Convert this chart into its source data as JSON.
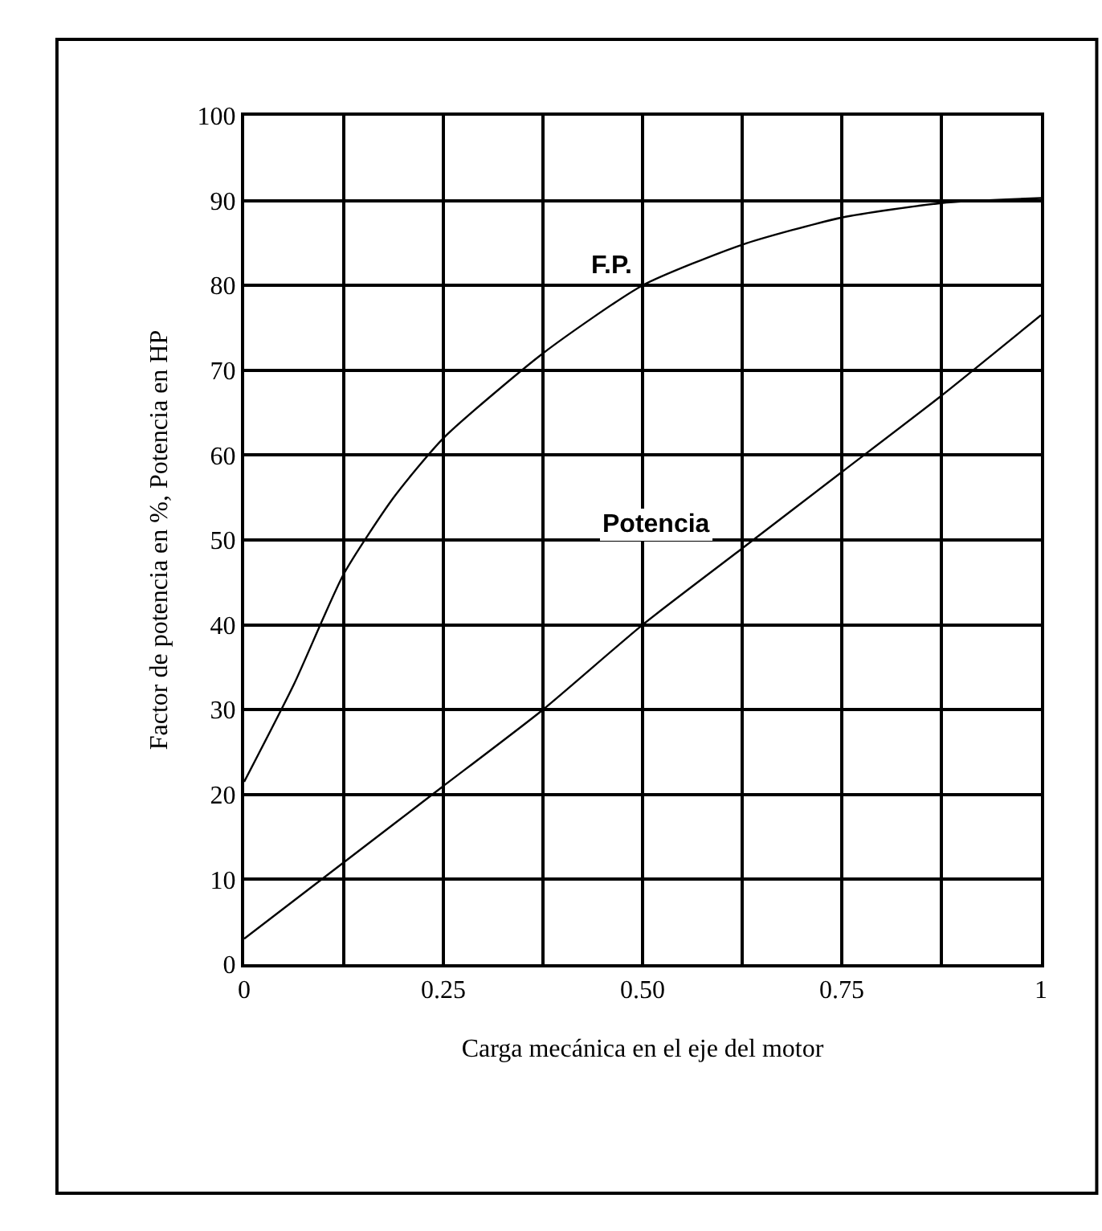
{
  "chart_data": {
    "type": "line",
    "xlabel": "Carga mecánica en el eje del motor",
    "ylabel": "Factor de potencia en %, Potencia en HP",
    "x": [
      0,
      0.0625,
      0.125,
      0.1875,
      0.25,
      0.375,
      0.5,
      0.625,
      0.75,
      0.875,
      1
    ],
    "series": [
      {
        "name": "F.P.",
        "color": "#000000",
        "values": [
          21.5,
          33,
          46,
          55,
          62,
          72,
          80,
          84.8,
          88,
          89.7,
          90.3
        ]
      },
      {
        "name": "Potencia",
        "color": "#000000",
        "values": [
          3,
          7.5,
          12,
          16.5,
          21,
          30,
          40,
          49,
          58,
          67,
          76.5
        ]
      }
    ],
    "xlim": [
      0,
      1
    ],
    "ylim": [
      0,
      100
    ],
    "xticks": [
      0,
      {
        "value": 0.125,
        "label": null
      },
      0.25,
      {
        "value": 0.375,
        "label": null
      },
      {
        "value": 0.5,
        "label": "0.50"
      },
      {
        "value": 0.625,
        "label": null
      },
      0.75,
      {
        "value": 0.875,
        "label": null
      },
      1
    ],
    "yticks": [
      0,
      10,
      20,
      30,
      40,
      50,
      60,
      70,
      80,
      90,
      100
    ],
    "grid": true,
    "legend": false,
    "marker": "none",
    "line_style": "solid"
  }
}
